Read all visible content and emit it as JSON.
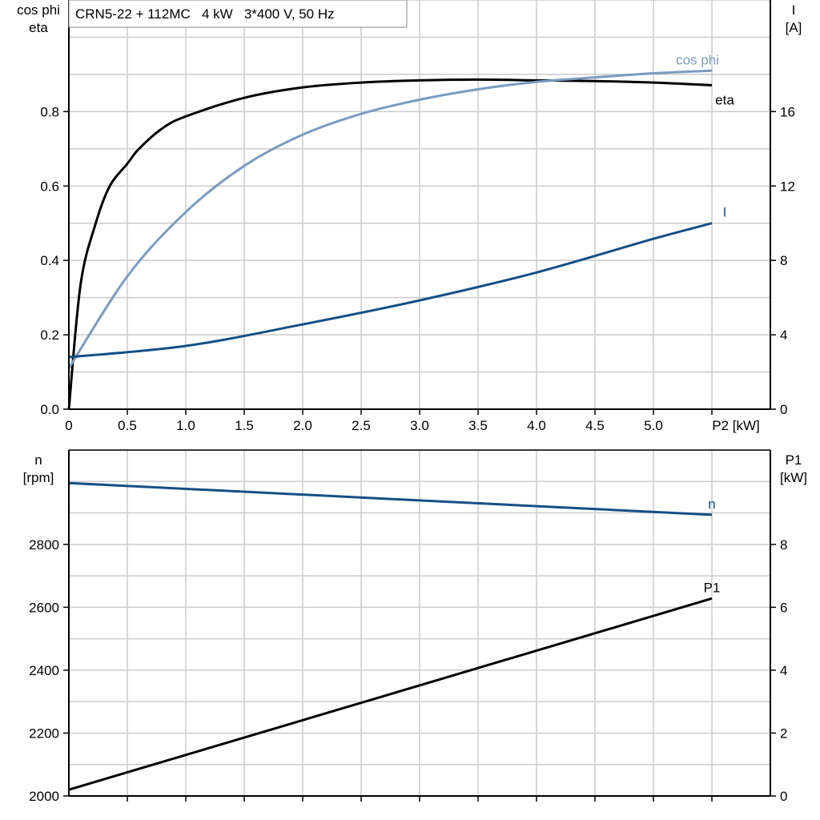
{
  "chart_data": [
    {
      "type": "line",
      "title": "CRN5-22 + 112MC   4 kW   3*400 V, 50 Hz",
      "xlabel": "P2 [kW]",
      "ylabel_left": [
        "cos phi",
        "eta"
      ],
      "ylabel_right": [
        "I",
        "[A]"
      ],
      "xlim": [
        0,
        6.0
      ],
      "ylim_left": [
        0,
        1.1
      ],
      "ylim_right": [
        0,
        22
      ],
      "x_ticks": [
        "0",
        "0.5",
        "1.0",
        "1.5",
        "2.0",
        "2.5",
        "3.0",
        "3.5",
        "4.0",
        "4.5",
        "5.0"
      ],
      "y_ticks_left": [
        "0.0",
        "0.2",
        "0.4",
        "0.6",
        "0.8"
      ],
      "y_ticks_right": [
        "0",
        "4",
        "8",
        "12",
        "16"
      ],
      "grid": true,
      "series": [
        {
          "name": "eta",
          "axis": "left",
          "color": "#000000",
          "x": [
            0,
            0.1,
            0.23,
            0.35,
            0.5,
            0.6,
            0.8,
            1.0,
            1.5,
            2.0,
            2.5,
            3.0,
            3.5,
            4.0,
            4.5,
            5.0,
            5.5
          ],
          "y": [
            0,
            0.335,
            0.5,
            0.6,
            0.66,
            0.7,
            0.755,
            0.787,
            0.837,
            0.865,
            0.878,
            0.884,
            0.886,
            0.884,
            0.882,
            0.878,
            0.871
          ]
        },
        {
          "name": "cos phi",
          "axis": "left",
          "color": "#7a9cc0",
          "x": [
            0,
            0.5,
            1.0,
            1.5,
            2.0,
            2.5,
            3.0,
            3.5,
            4.0,
            4.5,
            5.0,
            5.5
          ],
          "y": [
            0.11,
            0.357,
            0.53,
            0.654,
            0.738,
            0.794,
            0.832,
            0.86,
            0.88,
            0.892,
            0.903,
            0.91
          ]
        },
        {
          "name": "I",
          "axis": "right",
          "color": "#154f86",
          "x": [
            0,
            1.0,
            2.0,
            3.0,
            4.0,
            5.0,
            5.5
          ],
          "y": [
            2.8,
            3.4,
            4.56,
            5.85,
            7.35,
            9.16,
            10.0
          ]
        }
      ]
    },
    {
      "type": "line",
      "xlim": [
        0,
        6.0
      ],
      "ylabel_left": [
        "n",
        "[rpm]"
      ],
      "ylabel_right": [
        "P1",
        "[kW]"
      ],
      "ylim_left": [
        2000,
        3100
      ],
      "ylim_right": [
        0,
        11
      ],
      "y_ticks_left": [
        "2000",
        "2200",
        "2400",
        "2600",
        "2800"
      ],
      "y_ticks_right": [
        "0",
        "2",
        "4",
        "6",
        "8"
      ],
      "grid": true,
      "series": [
        {
          "name": "n",
          "axis": "left",
          "color": "#154f86",
          "x": [
            0,
            5.5
          ],
          "y": [
            2995,
            2894
          ]
        },
        {
          "name": "P1",
          "axis": "right",
          "color": "#000000",
          "x": [
            0,
            5.5
          ],
          "y": [
            0.2,
            6.28
          ]
        }
      ]
    }
  ]
}
